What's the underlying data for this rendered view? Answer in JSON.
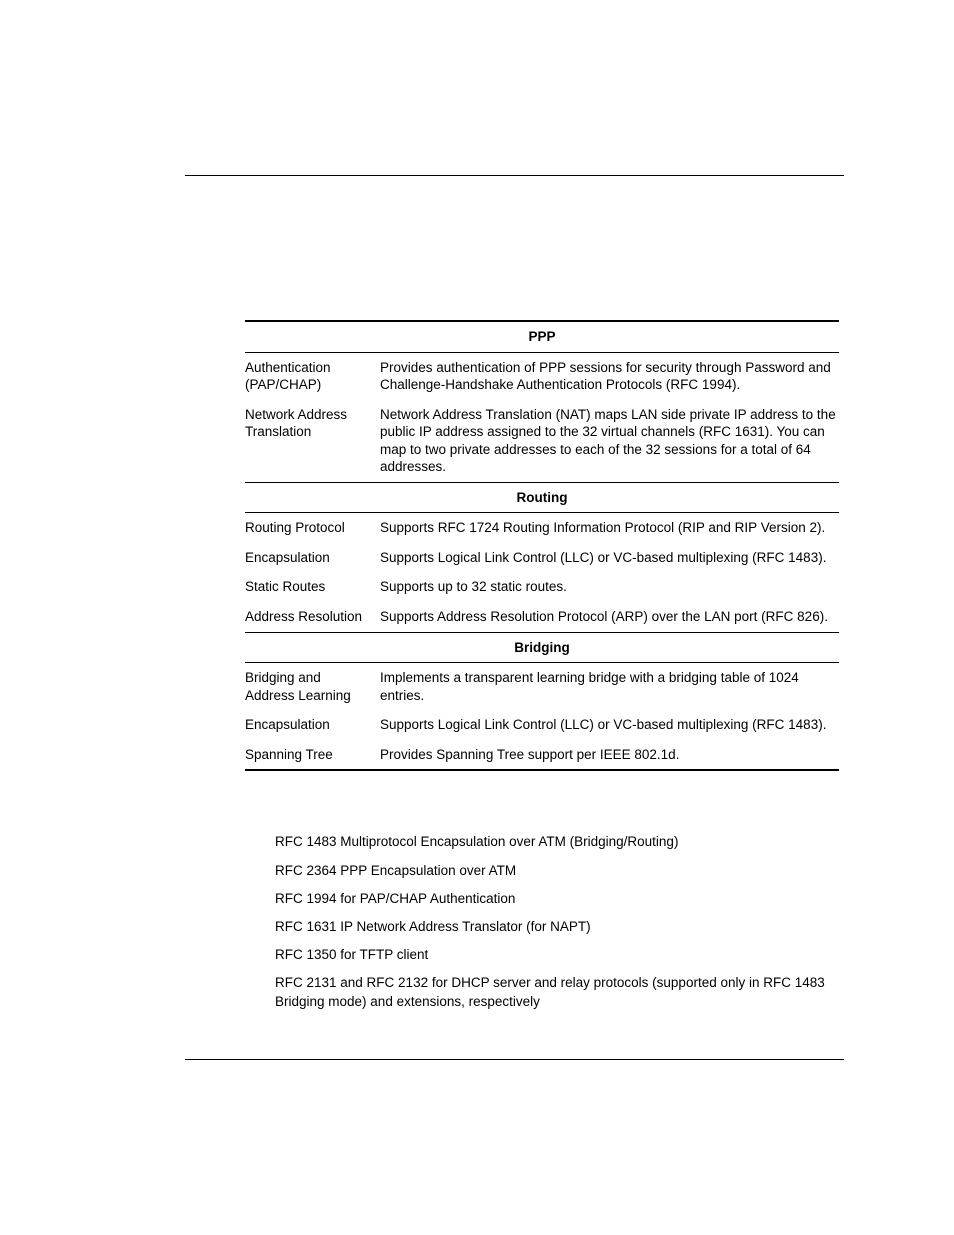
{
  "table": {
    "sections": [
      {
        "header": "PPP",
        "rows": [
          {
            "label": "Authentication (PAP/CHAP)",
            "desc": "Provides authentication of PPP sessions for security through Password and Challenge-Handshake Authentication Protocols (RFC 1994)."
          },
          {
            "label": "Network Address Translation",
            "desc": "Network Address Translation (NAT) maps LAN side private IP address to the public IP address assigned to the 32 virtual channels (RFC 1631). You can map to two private addresses to each of the 32 sessions for a total of 64 addresses."
          }
        ]
      },
      {
        "header": "Routing",
        "rows": [
          {
            "label": "Routing Protocol",
            "desc": "Supports RFC 1724 Routing Information Protocol (RIP and RIP Version 2)."
          },
          {
            "label": "Encapsulation",
            "desc": "Supports Logical Link Control (LLC) or VC-based multiplexing (RFC 1483)."
          },
          {
            "label": "Static Routes",
            "desc": "Supports up to 32 static routes."
          },
          {
            "label": "Address Resolution",
            "desc": "Supports Address Resolution Protocol (ARP) over the LAN port (RFC 826)."
          }
        ]
      },
      {
        "header": "Bridging",
        "rows": [
          {
            "label": "Bridging and Address Learning",
            "desc": "Implements a transparent learning bridge with a bridging table of 1024 entries."
          },
          {
            "label": "Encapsulation",
            "desc": "Supports Logical Link Control (LLC) or VC-based multiplexing (RFC 1483)."
          },
          {
            "label": "Spanning Tree",
            "desc": "Provides Spanning Tree support per IEEE 802.1d."
          }
        ]
      }
    ]
  },
  "rfc": [
    "RFC 1483 Multiprotocol Encapsulation over ATM (Bridging/Routing)",
    "RFC 2364 PPP Encapsulation over ATM",
    "RFC 1994 for PAP/CHAP Authentication",
    "RFC 1631 IP Network Address Translator (for NAPT)",
    "RFC 1350 for TFTP client",
    "RFC 2131 and RFC 2132 for DHCP server and relay protocols (supported only in RFC 1483 Bridging mode) and extensions, respectively"
  ]
}
